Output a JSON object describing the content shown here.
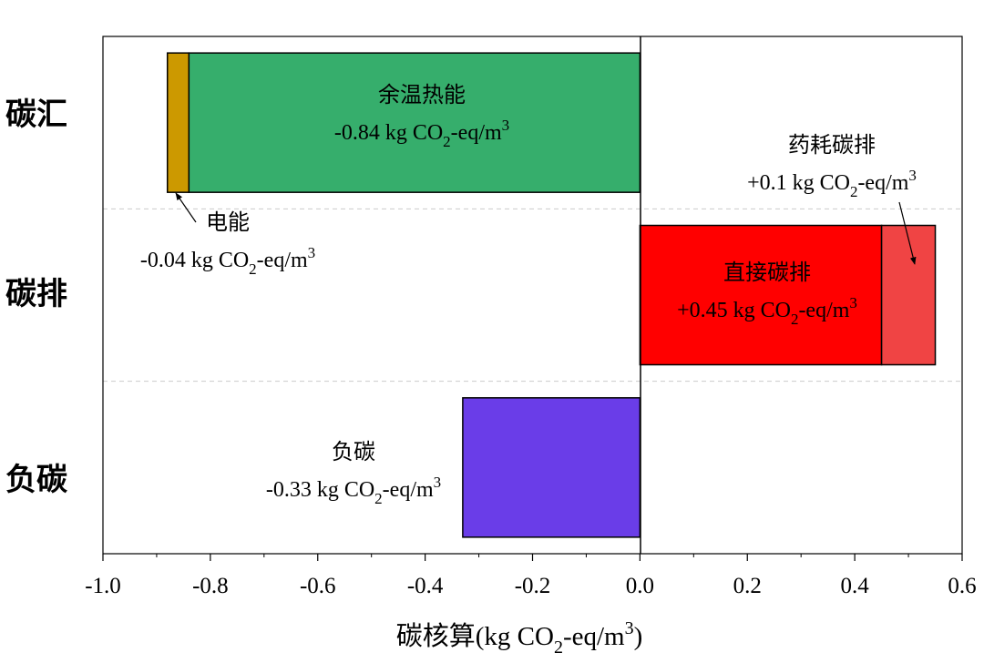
{
  "chart_data": {
    "type": "bar",
    "orientation": "horizontal-stacked",
    "title": "",
    "xlabel": {
      "pre": "碳核算(kg CO",
      "sub": "2",
      "mid": "-eq/m",
      "sup": "3",
      "post": ")"
    },
    "ylabel": "",
    "xlim": [
      -1.0,
      0.6
    ],
    "xticks": [
      "-1.0",
      "-0.8",
      "-0.6",
      "-0.4",
      "-0.2",
      "0.0",
      "0.2",
      "0.4",
      "0.6"
    ],
    "xtick_values": [
      -1.0,
      -0.8,
      -0.6,
      -0.4,
      -0.2,
      0.0,
      0.2,
      0.4,
      0.6
    ],
    "categories": [
      "碳汇",
      "碳排",
      "负碳"
    ],
    "unit": {
      "pre": " kg CO",
      "sub": "2",
      "mid": "-eq/m",
      "sup": "3"
    },
    "series": [
      {
        "name": "余温热能",
        "category": "碳汇",
        "start": -0.84,
        "end": 0.0,
        "value": "-0.84",
        "color": "#36AE6C"
      },
      {
        "name": "电能",
        "category": "碳汇",
        "start": -0.88,
        "end": -0.84,
        "value": "-0.04",
        "color": "#CC9900"
      },
      {
        "name": "直接碳排",
        "category": "碳排",
        "start": 0.0,
        "end": 0.45,
        "value": "+0.45",
        "color": "#FF0000"
      },
      {
        "name": "药耗碳排",
        "category": "碳排",
        "start": 0.45,
        "end": 0.55,
        "value": "+0.1",
        "color": "#F04444"
      },
      {
        "name": "负碳",
        "category": "负碳",
        "start": -0.33,
        "end": 0.0,
        "value": "-0.33",
        "color": "#6A3DE8"
      }
    ],
    "grid": "dashed horizontal separators between categories",
    "legend": "none"
  }
}
